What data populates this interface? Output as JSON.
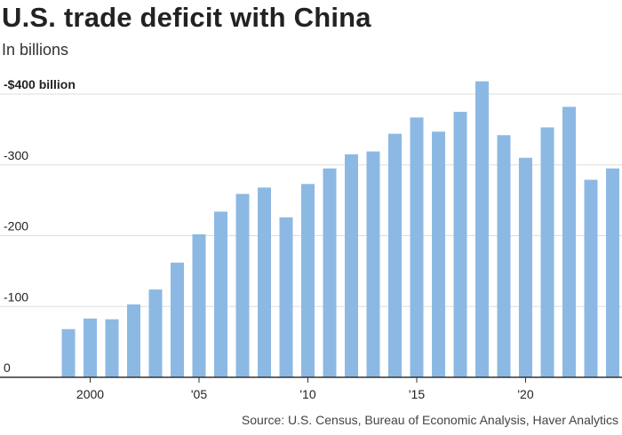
{
  "title": "U.S. trade deficit with China",
  "subtitle": "In billions",
  "source": "Source: U.S. Census, Bureau of Economic Analysis, Haver Analytics",
  "colors": {
    "bar": "#8cb9e3",
    "grid": "#dddddd",
    "baseline": "#333333"
  },
  "chart_data": {
    "type": "bar",
    "categories": [
      "1999",
      "2000",
      "2001",
      "2002",
      "2003",
      "2004",
      "2005",
      "2006",
      "2007",
      "2008",
      "2009",
      "2010",
      "2011",
      "2012",
      "2013",
      "2014",
      "2015",
      "2016",
      "2017",
      "2018",
      "2019",
      "2020",
      "2021",
      "2022",
      "2023",
      "2024"
    ],
    "values": [
      -68,
      -83,
      -82,
      -103,
      -124,
      -162,
      -202,
      -234,
      -259,
      -268,
      -226,
      -273,
      -295,
      -315,
      -319,
      -344,
      -367,
      -347,
      -375,
      -418,
      -342,
      -310,
      -353,
      -382,
      -279,
      -295
    ],
    "ylim": [
      0,
      -400
    ],
    "yticks": [
      {
        "value": 0,
        "label": "0"
      },
      {
        "value": -100,
        "label": "-100"
      },
      {
        "value": -200,
        "label": "-200"
      },
      {
        "value": -300,
        "label": "-300"
      },
      {
        "value": -400,
        "label": "-$400 billion"
      }
    ],
    "xticks": [
      {
        "category": "2000",
        "label": "2000"
      },
      {
        "category": "2005",
        "label": "'05"
      },
      {
        "category": "2010",
        "label": "'10"
      },
      {
        "category": "2015",
        "label": "'15"
      },
      {
        "category": "2020",
        "label": "'20"
      }
    ],
    "grid": true,
    "xlabel": "",
    "ylabel": ""
  }
}
